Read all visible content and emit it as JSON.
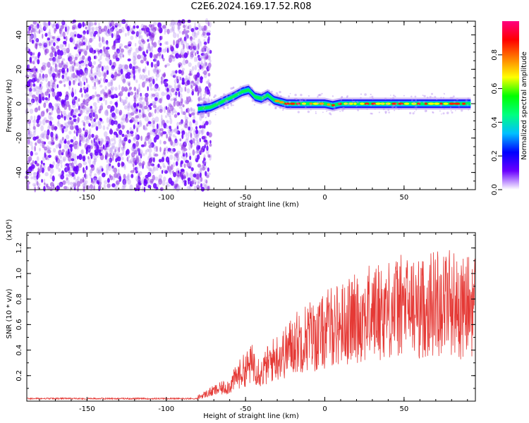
{
  "title": "C2E6.2024.169.17.52.R08",
  "chart_data": [
    {
      "type": "heatmap",
      "title": "",
      "xlabel": "Height of straight line (km)",
      "ylabel": "Frequency (Hz)",
      "xlim": [
        -188,
        95
      ],
      "ylim": [
        -50,
        48
      ],
      "x_ticks": [
        -150,
        -100,
        -50,
        0,
        50
      ],
      "y_ticks": [
        -40,
        -20,
        0,
        20,
        40
      ],
      "noise_region_x": [
        -188,
        -75
      ],
      "signal_ridge": {
        "x": [
          -80,
          -72,
          -65,
          -58,
          -52,
          -48,
          -44,
          -40,
          -36,
          -32,
          -28,
          -24,
          -20,
          -15,
          -10,
          -5,
          0,
          5,
          10,
          20,
          30,
          40,
          50,
          60,
          70,
          80,
          92
        ],
        "y": [
          -3,
          -2,
          1,
          4,
          7,
          8,
          4,
          3,
          5,
          2,
          1,
          0,
          0,
          0,
          0,
          0,
          0,
          -1,
          0,
          0,
          0,
          0,
          0,
          0,
          0,
          0,
          0
        ]
      },
      "colorbar": {
        "label": "Normalized spectral amplitude",
        "range": [
          0.0,
          1.0
        ],
        "ticks": [
          0.0,
          0.2,
          0.4,
          0.6,
          0.8
        ],
        "tick_labels": [
          "0.0",
          "0.2",
          "0.4",
          "0.6",
          "0.8"
        ],
        "colormap": [
          "#ffffff",
          "#6a00ff",
          "#0000ff",
          "#00bfff",
          "#00ff80",
          "#00ff00",
          "#ffff00",
          "#ff8000",
          "#ff0000",
          "#ff0080"
        ]
      }
    },
    {
      "type": "line",
      "title": "",
      "xlabel": "Height of straight line (km)",
      "ylabel": "SNR (10 * v/v)",
      "y_multiplier": "(x10⁴)",
      "xlim": [
        -188,
        95
      ],
      "ylim": [
        0,
        1.32
      ],
      "x_ticks": [
        -150,
        -100,
        -50,
        0,
        50
      ],
      "y_ticks": [
        0.2,
        0.4,
        0.6,
        0.8,
        1.0,
        1.2
      ],
      "y_tick_labels": [
        "0.2",
        "0.4",
        "0.6",
        "0.8",
        "1.0",
        "1.2"
      ],
      "line_color": "#e53935",
      "series": [
        {
          "x": [
            -188,
            -160,
            -130,
            -100,
            -80,
            -70,
            -60,
            -55,
            -50,
            -45,
            -40,
            -35,
            -30,
            -25,
            -20,
            -15,
            -10,
            -5,
            0,
            5,
            10,
            20,
            30,
            40,
            50,
            60,
            70,
            80,
            85,
            90,
            95
          ],
          "y": [
            0.02,
            0.02,
            0.02,
            0.02,
            0.03,
            0.08,
            0.12,
            0.2,
            0.25,
            0.3,
            0.22,
            0.3,
            0.35,
            0.38,
            0.45,
            0.48,
            0.52,
            0.5,
            0.55,
            0.6,
            0.6,
            0.65,
            0.7,
            0.72,
            0.75,
            0.72,
            0.78,
            0.8,
            0.7,
            0.75,
            0.75
          ]
        }
      ]
    }
  ]
}
